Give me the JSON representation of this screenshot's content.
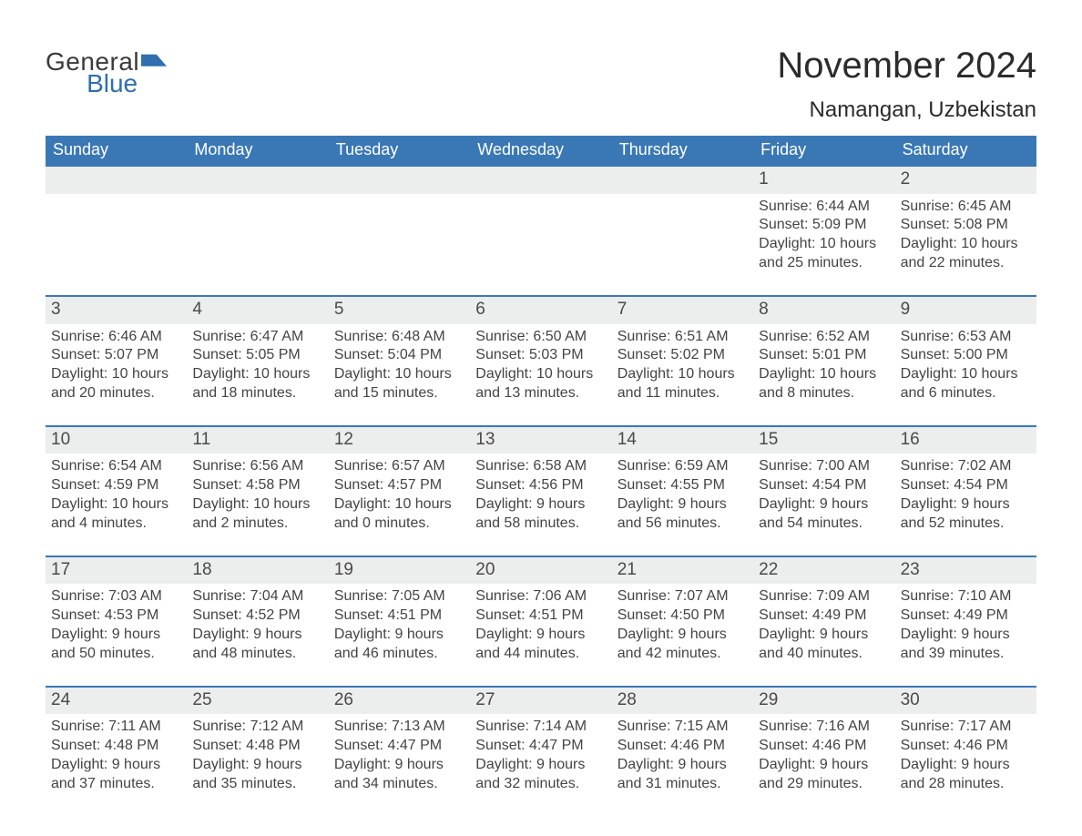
{
  "brand": {
    "general": "General",
    "blue": "Blue"
  },
  "colors": {
    "header_bg": "#3a78b5",
    "header_text": "#ffffff",
    "row_border": "#3a78b5",
    "daynum_bg": "#eceded",
    "body_text": "#3a3a3a",
    "logo_blue": "#2f6fb0",
    "page_bg": "#ffffff"
  },
  "fonts": {
    "title_size_pt": 30,
    "location_size_pt": 18,
    "weekday_size_pt": 13.5,
    "daynum_size_pt": 14,
    "body_size_pt": 12
  },
  "title": "November 2024",
  "location": "Namangan, Uzbekistan",
  "weekdays": [
    "Sunday",
    "Monday",
    "Tuesday",
    "Wednesday",
    "Thursday",
    "Friday",
    "Saturday"
  ],
  "weeks": [
    [
      {
        "day": "",
        "sunrise": "",
        "sunset": "",
        "daylight1": "",
        "daylight2": ""
      },
      {
        "day": "",
        "sunrise": "",
        "sunset": "",
        "daylight1": "",
        "daylight2": ""
      },
      {
        "day": "",
        "sunrise": "",
        "sunset": "",
        "daylight1": "",
        "daylight2": ""
      },
      {
        "day": "",
        "sunrise": "",
        "sunset": "",
        "daylight1": "",
        "daylight2": ""
      },
      {
        "day": "",
        "sunrise": "",
        "sunset": "",
        "daylight1": "",
        "daylight2": ""
      },
      {
        "day": "1",
        "sunrise": "Sunrise: 6:44 AM",
        "sunset": "Sunset: 5:09 PM",
        "daylight1": "Daylight: 10 hours",
        "daylight2": "and 25 minutes."
      },
      {
        "day": "2",
        "sunrise": "Sunrise: 6:45 AM",
        "sunset": "Sunset: 5:08 PM",
        "daylight1": "Daylight: 10 hours",
        "daylight2": "and 22 minutes."
      }
    ],
    [
      {
        "day": "3",
        "sunrise": "Sunrise: 6:46 AM",
        "sunset": "Sunset: 5:07 PM",
        "daylight1": "Daylight: 10 hours",
        "daylight2": "and 20 minutes."
      },
      {
        "day": "4",
        "sunrise": "Sunrise: 6:47 AM",
        "sunset": "Sunset: 5:05 PM",
        "daylight1": "Daylight: 10 hours",
        "daylight2": "and 18 minutes."
      },
      {
        "day": "5",
        "sunrise": "Sunrise: 6:48 AM",
        "sunset": "Sunset: 5:04 PM",
        "daylight1": "Daylight: 10 hours",
        "daylight2": "and 15 minutes."
      },
      {
        "day": "6",
        "sunrise": "Sunrise: 6:50 AM",
        "sunset": "Sunset: 5:03 PM",
        "daylight1": "Daylight: 10 hours",
        "daylight2": "and 13 minutes."
      },
      {
        "day": "7",
        "sunrise": "Sunrise: 6:51 AM",
        "sunset": "Sunset: 5:02 PM",
        "daylight1": "Daylight: 10 hours",
        "daylight2": "and 11 minutes."
      },
      {
        "day": "8",
        "sunrise": "Sunrise: 6:52 AM",
        "sunset": "Sunset: 5:01 PM",
        "daylight1": "Daylight: 10 hours",
        "daylight2": "and 8 minutes."
      },
      {
        "day": "9",
        "sunrise": "Sunrise: 6:53 AM",
        "sunset": "Sunset: 5:00 PM",
        "daylight1": "Daylight: 10 hours",
        "daylight2": "and 6 minutes."
      }
    ],
    [
      {
        "day": "10",
        "sunrise": "Sunrise: 6:54 AM",
        "sunset": "Sunset: 4:59 PM",
        "daylight1": "Daylight: 10 hours",
        "daylight2": "and 4 minutes."
      },
      {
        "day": "11",
        "sunrise": "Sunrise: 6:56 AM",
        "sunset": "Sunset: 4:58 PM",
        "daylight1": "Daylight: 10 hours",
        "daylight2": "and 2 minutes."
      },
      {
        "day": "12",
        "sunrise": "Sunrise: 6:57 AM",
        "sunset": "Sunset: 4:57 PM",
        "daylight1": "Daylight: 10 hours",
        "daylight2": "and 0 minutes."
      },
      {
        "day": "13",
        "sunrise": "Sunrise: 6:58 AM",
        "sunset": "Sunset: 4:56 PM",
        "daylight1": "Daylight: 9 hours",
        "daylight2": "and 58 minutes."
      },
      {
        "day": "14",
        "sunrise": "Sunrise: 6:59 AM",
        "sunset": "Sunset: 4:55 PM",
        "daylight1": "Daylight: 9 hours",
        "daylight2": "and 56 minutes."
      },
      {
        "day": "15",
        "sunrise": "Sunrise: 7:00 AM",
        "sunset": "Sunset: 4:54 PM",
        "daylight1": "Daylight: 9 hours",
        "daylight2": "and 54 minutes."
      },
      {
        "day": "16",
        "sunrise": "Sunrise: 7:02 AM",
        "sunset": "Sunset: 4:54 PM",
        "daylight1": "Daylight: 9 hours",
        "daylight2": "and 52 minutes."
      }
    ],
    [
      {
        "day": "17",
        "sunrise": "Sunrise: 7:03 AM",
        "sunset": "Sunset: 4:53 PM",
        "daylight1": "Daylight: 9 hours",
        "daylight2": "and 50 minutes."
      },
      {
        "day": "18",
        "sunrise": "Sunrise: 7:04 AM",
        "sunset": "Sunset: 4:52 PM",
        "daylight1": "Daylight: 9 hours",
        "daylight2": "and 48 minutes."
      },
      {
        "day": "19",
        "sunrise": "Sunrise: 7:05 AM",
        "sunset": "Sunset: 4:51 PM",
        "daylight1": "Daylight: 9 hours",
        "daylight2": "and 46 minutes."
      },
      {
        "day": "20",
        "sunrise": "Sunrise: 7:06 AM",
        "sunset": "Sunset: 4:51 PM",
        "daylight1": "Daylight: 9 hours",
        "daylight2": "and 44 minutes."
      },
      {
        "day": "21",
        "sunrise": "Sunrise: 7:07 AM",
        "sunset": "Sunset: 4:50 PM",
        "daylight1": "Daylight: 9 hours",
        "daylight2": "and 42 minutes."
      },
      {
        "day": "22",
        "sunrise": "Sunrise: 7:09 AM",
        "sunset": "Sunset: 4:49 PM",
        "daylight1": "Daylight: 9 hours",
        "daylight2": "and 40 minutes."
      },
      {
        "day": "23",
        "sunrise": "Sunrise: 7:10 AM",
        "sunset": "Sunset: 4:49 PM",
        "daylight1": "Daylight: 9 hours",
        "daylight2": "and 39 minutes."
      }
    ],
    [
      {
        "day": "24",
        "sunrise": "Sunrise: 7:11 AM",
        "sunset": "Sunset: 4:48 PM",
        "daylight1": "Daylight: 9 hours",
        "daylight2": "and 37 minutes."
      },
      {
        "day": "25",
        "sunrise": "Sunrise: 7:12 AM",
        "sunset": "Sunset: 4:48 PM",
        "daylight1": "Daylight: 9 hours",
        "daylight2": "and 35 minutes."
      },
      {
        "day": "26",
        "sunrise": "Sunrise: 7:13 AM",
        "sunset": "Sunset: 4:47 PM",
        "daylight1": "Daylight: 9 hours",
        "daylight2": "and 34 minutes."
      },
      {
        "day": "27",
        "sunrise": "Sunrise: 7:14 AM",
        "sunset": "Sunset: 4:47 PM",
        "daylight1": "Daylight: 9 hours",
        "daylight2": "and 32 minutes."
      },
      {
        "day": "28",
        "sunrise": "Sunrise: 7:15 AM",
        "sunset": "Sunset: 4:46 PM",
        "daylight1": "Daylight: 9 hours",
        "daylight2": "and 31 minutes."
      },
      {
        "day": "29",
        "sunrise": "Sunrise: 7:16 AM",
        "sunset": "Sunset: 4:46 PM",
        "daylight1": "Daylight: 9 hours",
        "daylight2": "and 29 minutes."
      },
      {
        "day": "30",
        "sunrise": "Sunrise: 7:17 AM",
        "sunset": "Sunset: 4:46 PM",
        "daylight1": "Daylight: 9 hours",
        "daylight2": "and 28 minutes."
      }
    ]
  ]
}
